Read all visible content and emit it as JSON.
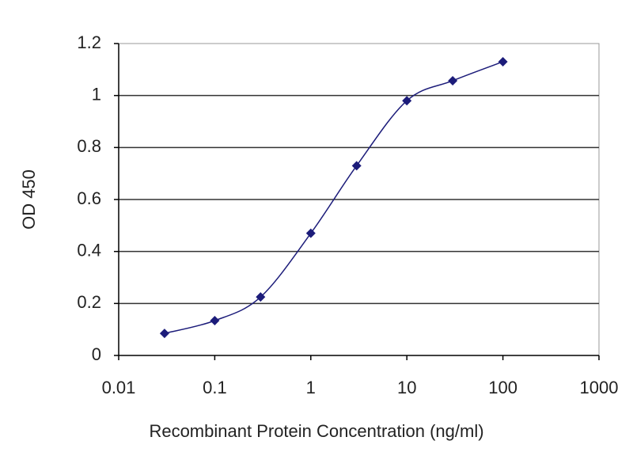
{
  "chart_data": {
    "type": "line",
    "x": [
      0.03,
      0.1,
      0.3,
      1,
      3,
      10,
      30,
      100
    ],
    "series": [
      {
        "color": "#1c1c7a",
        "values": [
          0.085,
          0.134,
          0.225,
          0.47,
          0.73,
          0.98,
          1.057,
          1.13
        ]
      }
    ],
    "xlabel": "Recombinant Protein Concentration (ng/ml)",
    "ylabel": "OD 450",
    "xlim": [
      0.01,
      1000
    ],
    "xticks": [
      0.01,
      0.1,
      1,
      10,
      100,
      1000
    ],
    "xscale": "log",
    "ylim": [
      0,
      1.2
    ],
    "yticks": [
      0,
      0.2,
      0.4,
      0.6,
      0.8,
      1,
      1.2
    ],
    "grid": "y",
    "marker": "diamond",
    "smooth": true
  }
}
